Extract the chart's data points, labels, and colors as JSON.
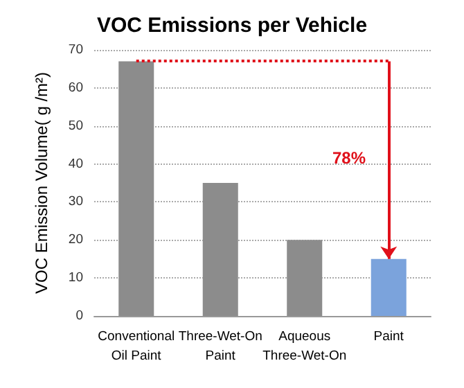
{
  "chart_data": {
    "type": "bar",
    "title": "VOC Emissions per Vehicle",
    "ylabel": "VOC Emission Volume( g /m²)",
    "categories": [
      "Conventional\nOil Paint",
      "Three-Wet-On\nPaint",
      "Aqueous\nThree-Wet-On",
      "Paint"
    ],
    "values": [
      67,
      35,
      20,
      15
    ],
    "colors": [
      "#8c8c8c",
      "#8c8c8c",
      "#8c8c8c",
      "#7ba3dc"
    ],
    "ylim": [
      0,
      70
    ],
    "yticks": [
      0,
      10,
      20,
      30,
      40,
      50,
      60,
      70
    ],
    "grid": "y",
    "ref_lines": [
      {
        "axis": "y",
        "value": 67,
        "color": "#e0101a",
        "line_style": "dotted"
      }
    ],
    "annotations": [
      "78%"
    ]
  }
}
